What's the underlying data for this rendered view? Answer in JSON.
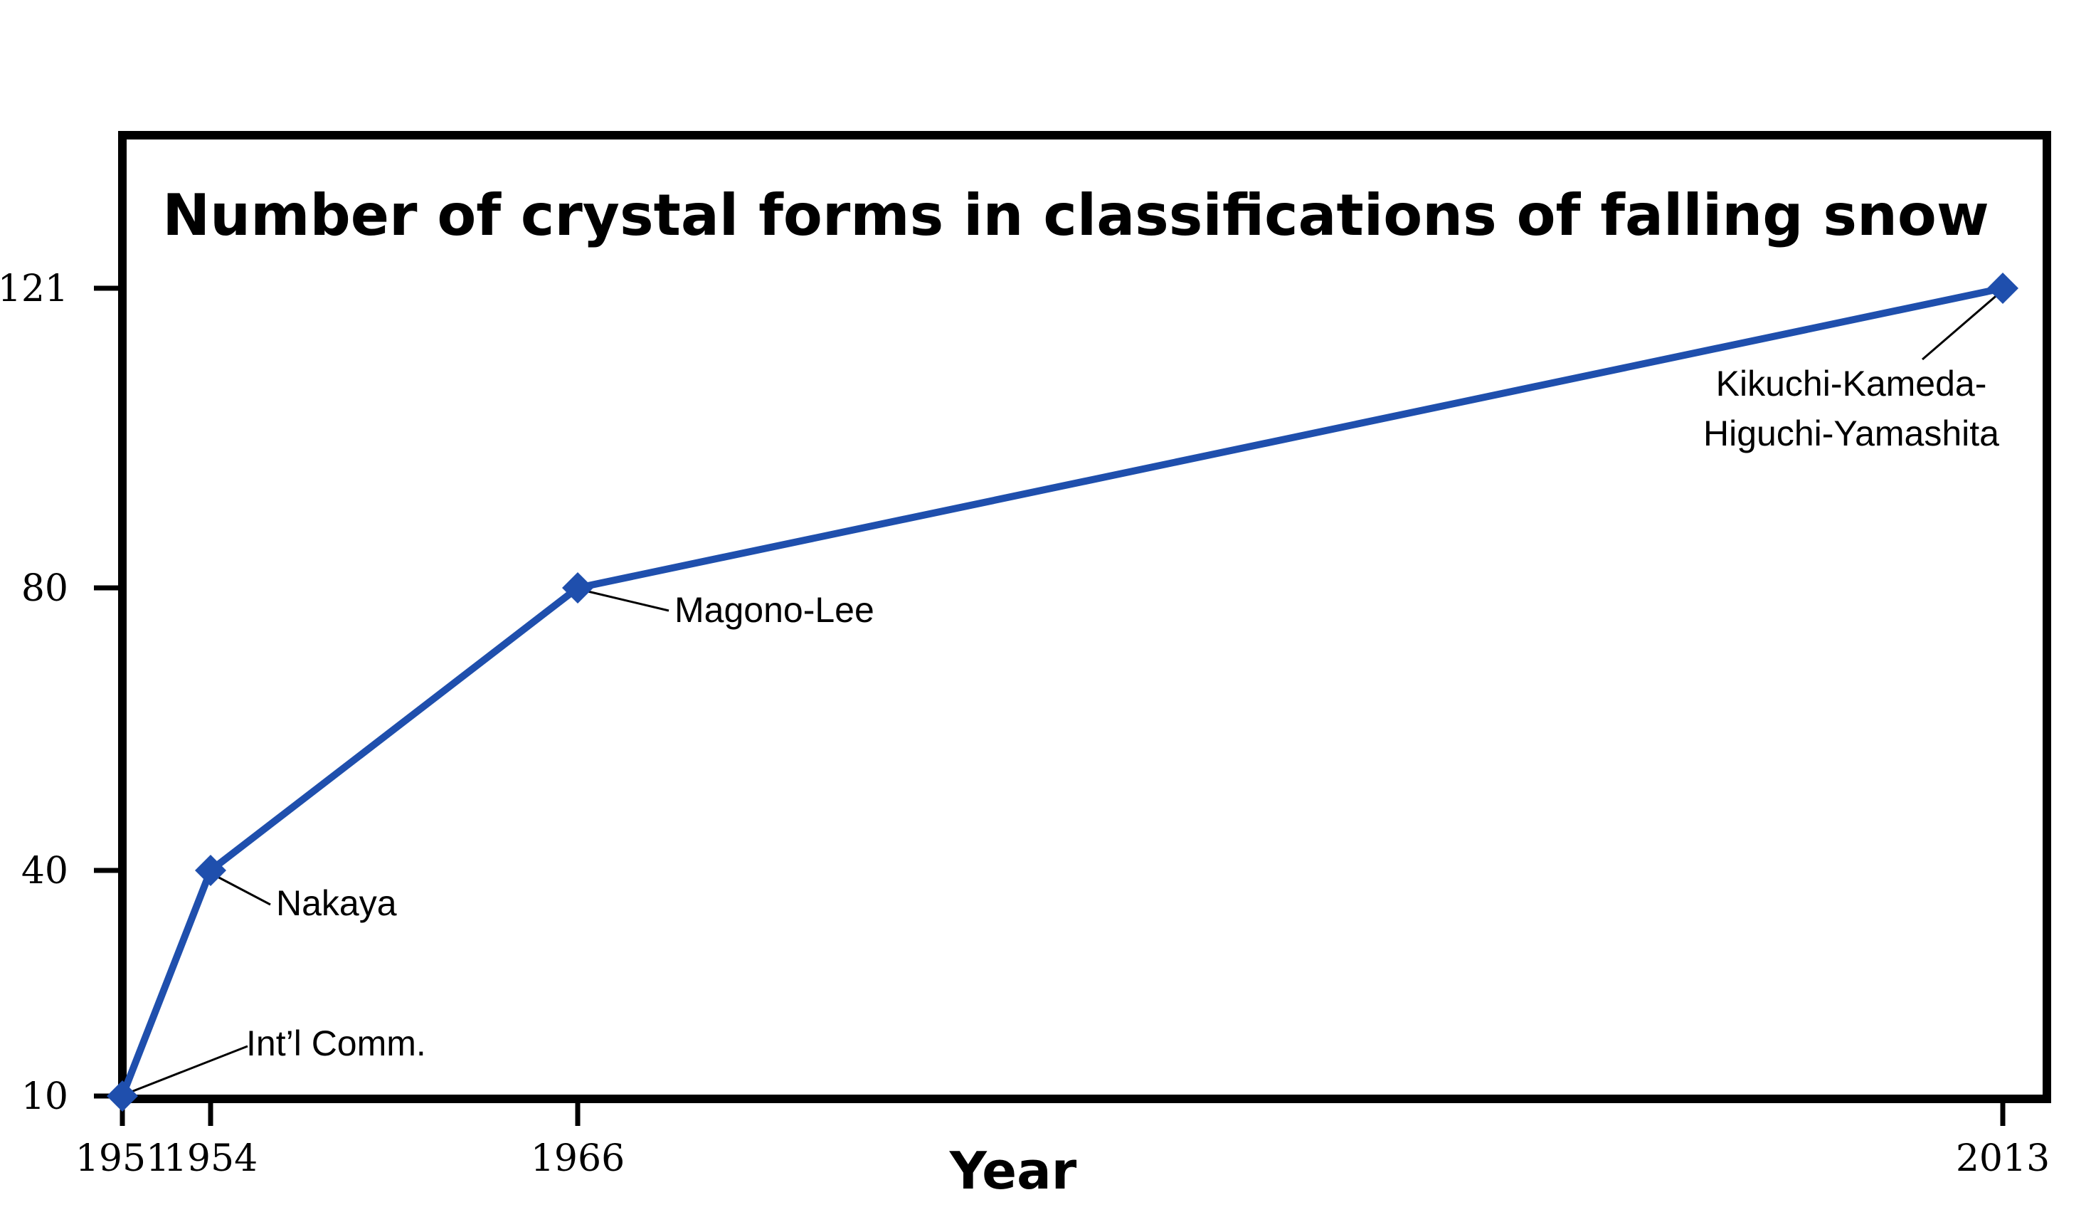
{
  "chart_data": {
    "type": "line",
    "title": "Number of crystal forms in classifications of falling snow",
    "xlabel": "Year",
    "ylabel": "",
    "x_ticks": [
      "1951",
      "1954",
      "1966",
      "2013"
    ],
    "y_ticks": [
      "10",
      "40",
      "80",
      "121"
    ],
    "y_scale": "piecewise (ticks at 10, 40, 80, 121)",
    "grid": false,
    "legend": "none",
    "series": [
      {
        "x": [
          1951,
          1954,
          1966,
          2013
        ],
        "y": [
          10,
          40,
          80,
          121
        ]
      }
    ],
    "annotations": [
      {
        "x": 1951,
        "y": 10,
        "text": "Int’l Comm."
      },
      {
        "x": 1954,
        "y": 40,
        "text": "Nakaya"
      },
      {
        "x": 1966,
        "y": 80,
        "text": "Magono-Lee"
      },
      {
        "x": 2013,
        "y": 121,
        "text": [
          "Kikuchi-Kameda-",
          "Higuchi-Yamashita"
        ]
      }
    ],
    "colors": {
      "line": "#1f4fad",
      "marker": "#1f4fad",
      "frame": "#000000"
    }
  }
}
